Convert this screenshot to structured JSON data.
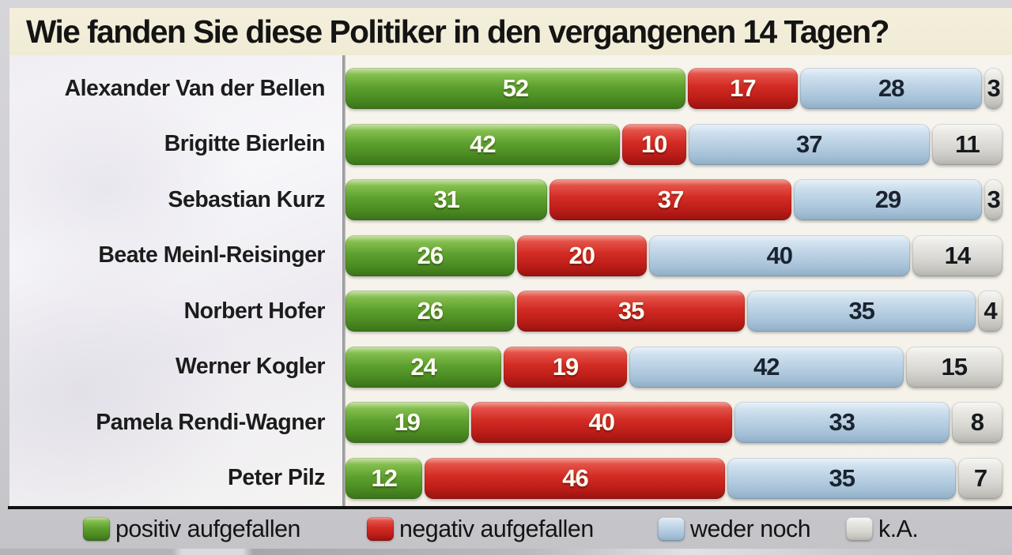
{
  "title": "Wie fanden Sie diese Politiker in den vergangenen 14 Tagen?",
  "legend": [
    {
      "label": "positiv aufgefallen",
      "color": "#5ea02f"
    },
    {
      "label": "negativ aufgefallen",
      "color": "#d22b24"
    },
    {
      "label": "weder noch",
      "color": "#b5cde1"
    },
    {
      "label": "k.A.",
      "color": "#d7d6d1"
    }
  ],
  "chart_data": {
    "type": "bar",
    "orientation": "horizontal",
    "stacked": true,
    "value_unit": "percent",
    "xlim": [
      0,
      100
    ],
    "title": "Wie fanden Sie diese Politiker in den vergangenen 14 Tagen?",
    "categories": [
      "Alexander Van der Bellen",
      "Brigitte Bierlein",
      "Sebastian Kurz",
      "Beate Meinl-Reisinger",
      "Norbert Hofer",
      "Werner Kogler",
      "Pamela Rendi-Wagner",
      "Peter Pilz"
    ],
    "series": [
      {
        "name": "positiv aufgefallen",
        "key": "positive",
        "color": "#5ea02f",
        "values": [
          52,
          42,
          31,
          26,
          26,
          24,
          19,
          12
        ]
      },
      {
        "name": "negativ aufgefallen",
        "key": "negative",
        "color": "#d22b24",
        "values": [
          17,
          10,
          37,
          20,
          35,
          19,
          40,
          46
        ]
      },
      {
        "name": "weder noch",
        "key": "neither",
        "color": "#b5cde1",
        "values": [
          28,
          37,
          29,
          40,
          35,
          42,
          33,
          35
        ]
      },
      {
        "name": "k.A.",
        "key": "ka",
        "color": "#d7d6d1",
        "values": [
          3,
          11,
          3,
          14,
          4,
          15,
          8,
          7
        ]
      }
    ]
  },
  "legend_layout": {
    "item_lefts": [
      93,
      452,
      820,
      1058
    ]
  }
}
